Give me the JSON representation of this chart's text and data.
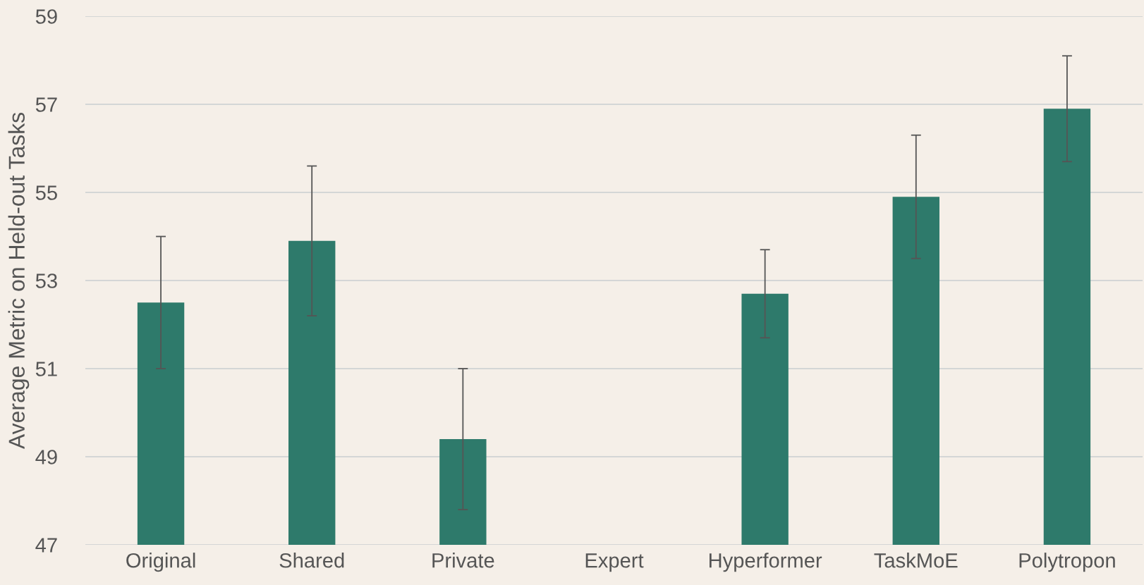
{
  "chart_data": {
    "type": "bar",
    "ylabel": "Average Metric on Held-out Tasks",
    "categories": [
      "Original",
      "Shared",
      "Private",
      "Expert",
      "Hyperformer",
      "TaskMoE",
      "Polytropon"
    ],
    "values": [
      52.5,
      53.9,
      49.4,
      null,
      52.7,
      54.9,
      56.9
    ],
    "errors": [
      1.5,
      1.7,
      1.6,
      null,
      1.0,
      1.4,
      1.2
    ],
    "color": "#2e7a6b",
    "ylim": [
      47,
      59
    ],
    "yticks": [
      47,
      49,
      51,
      53,
      55,
      57,
      59
    ],
    "grid": "y"
  }
}
